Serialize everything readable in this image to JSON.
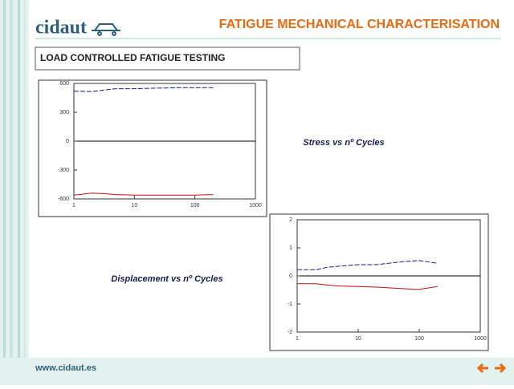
{
  "header": {
    "logo": "cidaut",
    "title": "FATIGUE MECHANICAL CHARACTERISATION",
    "section": "LOAD CONTROLLED FATIGUE TESTING"
  },
  "footer": {
    "url": "www.cidaut.es"
  },
  "chart_data": [
    {
      "type": "line",
      "title": "Stress vs nº Cycles",
      "xscale": "log",
      "x": [
        1,
        2,
        3,
        5,
        10,
        20,
        50,
        100,
        200
      ],
      "xlim": [
        1,
        1000
      ],
      "xticks": [
        1,
        10,
        100,
        1000
      ],
      "ylim": [
        -600,
        600
      ],
      "yticks": [
        600,
        300,
        0,
        -300,
        -600
      ],
      "series": [
        {
          "color": "#1a1aa0",
          "dash": true,
          "values": [
            520,
            515,
            530,
            545,
            545,
            550,
            555,
            555,
            555
          ]
        },
        {
          "color": "#c01010",
          "dash": false,
          "values": [
            -560,
            -540,
            -545,
            -555,
            -560,
            -560,
            -560,
            -560,
            -555
          ]
        }
      ]
    },
    {
      "type": "line",
      "title": "Displacement vs nº Cycles",
      "xscale": "log",
      "x": [
        1,
        2,
        3,
        5,
        10,
        20,
        50,
        100,
        200
      ],
      "xlim": [
        1,
        1000
      ],
      "xticks": [
        1,
        10,
        100,
        1000
      ],
      "ylim": [
        -2,
        2
      ],
      "yticks": [
        2,
        1,
        0,
        -1,
        -2
      ],
      "series": [
        {
          "color": "#1a1aa0",
          "dash": true,
          "values": [
            0.22,
            0.22,
            0.3,
            0.35,
            0.4,
            0.4,
            0.5,
            0.55,
            0.45
          ]
        },
        {
          "color": "#c01010",
          "dash": false,
          "values": [
            -0.28,
            -0.28,
            -0.32,
            -0.36,
            -0.38,
            -0.4,
            -0.45,
            -0.48,
            -0.38
          ]
        }
      ]
    }
  ]
}
